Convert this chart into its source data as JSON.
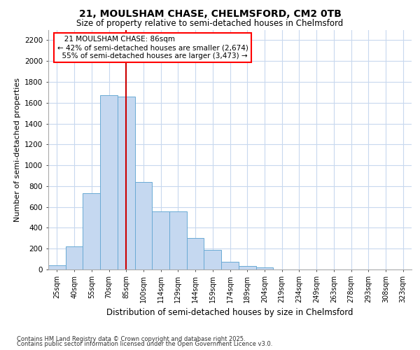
{
  "title_line1": "21, MOULSHAM CHASE, CHELMSFORD, CM2 0TB",
  "title_line2": "Size of property relative to semi-detached houses in Chelmsford",
  "xlabel": "Distribution of semi-detached houses by size in Chelmsford",
  "ylabel": "Number of semi-detached properties",
  "categories": [
    "25sqm",
    "40sqm",
    "55sqm",
    "70sqm",
    "85sqm",
    "100sqm",
    "114sqm",
    "129sqm",
    "144sqm",
    "159sqm",
    "174sqm",
    "189sqm",
    "204sqm",
    "219sqm",
    "234sqm",
    "249sqm",
    "263sqm",
    "278sqm",
    "293sqm",
    "308sqm",
    "323sqm"
  ],
  "values": [
    40,
    220,
    730,
    1670,
    1660,
    840,
    560,
    560,
    300,
    185,
    75,
    35,
    20,
    0,
    0,
    0,
    0,
    0,
    0,
    0,
    0
  ],
  "bar_color": "#c5d8f0",
  "bar_edge_color": "#6aaad4",
  "vline_x_index": 4,
  "vline_color": "#cc0000",
  "property_label": "21 MOULSHAM CHASE: 86sqm",
  "pct_smaller": "42%",
  "count_smaller": "2,674",
  "pct_larger": "55%",
  "count_larger": "3,473",
  "ylim": [
    0,
    2300
  ],
  "yticks": [
    0,
    200,
    400,
    600,
    800,
    1000,
    1200,
    1400,
    1600,
    1800,
    2000,
    2200
  ],
  "plot_bg_color": "#ffffff",
  "grid_color": "#c8d8ee",
  "footer_line1": "Contains HM Land Registry data © Crown copyright and database right 2025.",
  "footer_line2": "Contains public sector information licensed under the Open Government Licence v3.0."
}
